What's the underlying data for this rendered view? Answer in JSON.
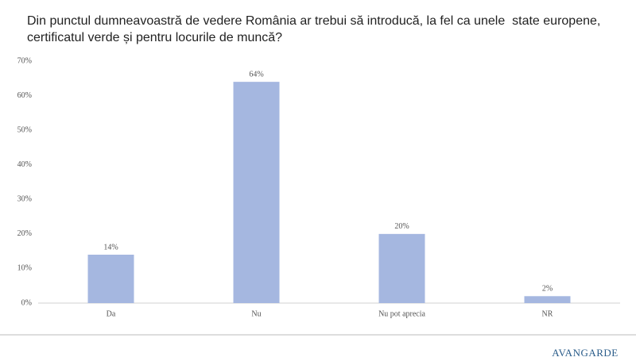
{
  "chart_data": {
    "type": "bar",
    "title": "Din punctul dumneavoastră de vedere România ar trebui să introducă, la fel ca unele  state europene, certificatul verde și pentru locurile de muncă?",
    "categories": [
      "Da",
      "Nu",
      "Nu pot aprecia",
      "NR"
    ],
    "values": [
      14,
      64,
      20,
      2
    ],
    "value_labels": [
      "14%",
      "64%",
      "20%",
      "2%"
    ],
    "color": "#a5b7e0",
    "ylim": [
      0,
      70
    ],
    "yticks": [
      {
        "value": 0,
        "label": "0%"
      },
      {
        "value": 10,
        "label": "10%"
      },
      {
        "value": 20,
        "label": "20%"
      },
      {
        "value": 30,
        "label": "30%"
      },
      {
        "value": 40,
        "label": "40%"
      },
      {
        "value": 50,
        "label": "50%"
      },
      {
        "value": 60,
        "label": "60%"
      },
      {
        "value": 70,
        "label": "70%"
      }
    ],
    "grid": false,
    "logo": "AVANGARDE"
  }
}
